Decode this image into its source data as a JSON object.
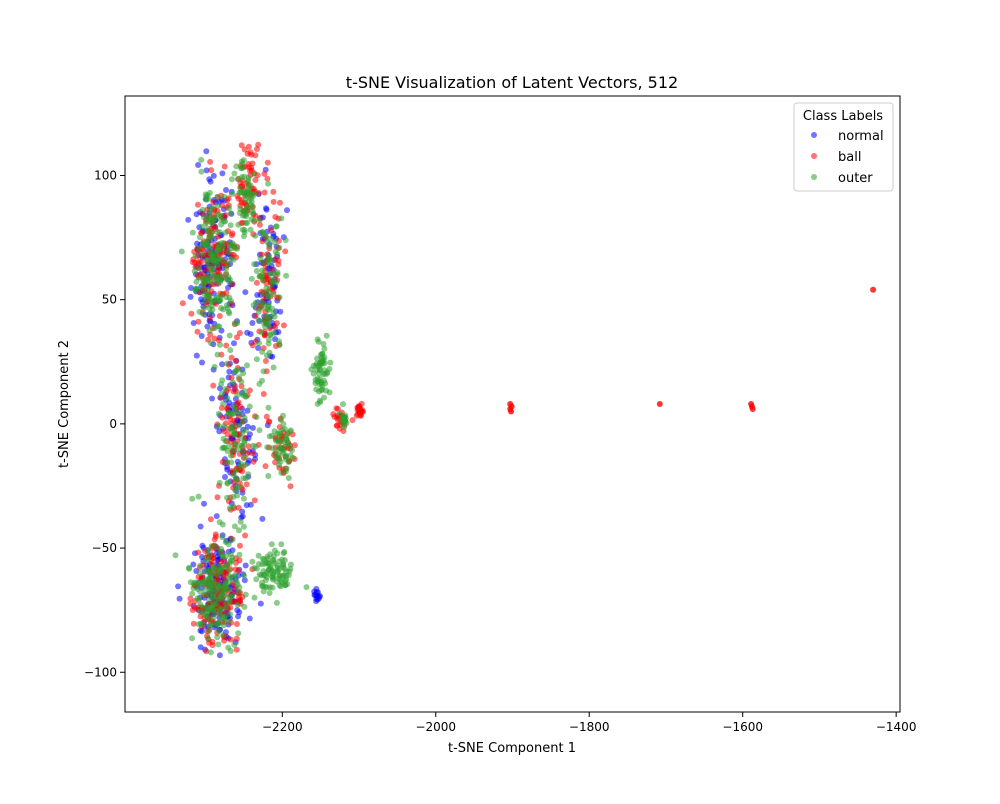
{
  "chart_data": {
    "type": "scatter",
    "title": "t-SNE Visualization of Latent Vectors, 512",
    "xlabel": "t-SNE Component 1",
    "ylabel": "t-SNE Component 2",
    "xlim": [
      -2405,
      -1395
    ],
    "ylim": [
      -116,
      132
    ],
    "xticks": [
      -2200,
      -2000,
      -1800,
      -1600,
      -1400
    ],
    "yticks": [
      -100,
      -50,
      0,
      50,
      100
    ],
    "grid": false,
    "legend": {
      "title": "Class Labels",
      "placement": "top-right"
    },
    "point_alpha": 0.55,
    "series": [
      {
        "name": "normal",
        "color": "#0000ff",
        "clusters": [
          {
            "cx": -2290,
            "cy": 65,
            "sx": 25,
            "sy": 28,
            "n": 140
          },
          {
            "cx": -2260,
            "cy": -5,
            "sx": 25,
            "sy": 35,
            "n": 90
          },
          {
            "cx": -2285,
            "cy": -68,
            "sx": 30,
            "sy": 20,
            "n": 160
          },
          {
            "cx": -2220,
            "cy": 55,
            "sx": 18,
            "sy": 35,
            "n": 70
          },
          {
            "cx": -2155,
            "cy": -69,
            "sx": 4,
            "sy": 2,
            "n": 14
          }
        ]
      },
      {
        "name": "ball",
        "color": "#ff0000",
        "clusters": [
          {
            "cx": -2290,
            "cy": 65,
            "sx": 25,
            "sy": 28,
            "n": 150
          },
          {
            "cx": -2245,
            "cy": 95,
            "sx": 15,
            "sy": 15,
            "n": 60
          },
          {
            "cx": -2260,
            "cy": -5,
            "sx": 25,
            "sy": 35,
            "n": 90
          },
          {
            "cx": -2285,
            "cy": -68,
            "sx": 30,
            "sy": 20,
            "n": 160
          },
          {
            "cx": -2220,
            "cy": 55,
            "sx": 18,
            "sy": 35,
            "n": 80
          },
          {
            "cx": -2200,
            "cy": -10,
            "sx": 15,
            "sy": 12,
            "n": 40
          },
          {
            "cx": -2100,
            "cy": 5,
            "sx": 6,
            "sy": 3,
            "n": 25
          },
          {
            "cx": -2125,
            "cy": 2,
            "sx": 6,
            "sy": 4,
            "n": 20
          }
        ],
        "outliers": [
          {
            "x": -1903,
            "y": 6
          },
          {
            "x": -1901,
            "y": 7
          },
          {
            "x": -1902,
            "y": 5
          },
          {
            "x": -1903,
            "y": 8
          },
          {
            "x": -1708,
            "y": 8
          },
          {
            "x": -1588,
            "y": 7
          },
          {
            "x": -1587,
            "y": 6
          },
          {
            "x": -1589,
            "y": 8
          },
          {
            "x": -1430,
            "y": 54
          }
        ]
      },
      {
        "name": "outer",
        "color": "#2ca02c",
        "clusters": [
          {
            "cx": -2290,
            "cy": 65,
            "sx": 25,
            "sy": 28,
            "n": 170
          },
          {
            "cx": -2250,
            "cy": 90,
            "sx": 15,
            "sy": 15,
            "n": 60
          },
          {
            "cx": -2260,
            "cy": -5,
            "sx": 25,
            "sy": 35,
            "n": 100
          },
          {
            "cx": -2285,
            "cy": -68,
            "sx": 30,
            "sy": 20,
            "n": 170
          },
          {
            "cx": -2210,
            "cy": -60,
            "sx": 25,
            "sy": 8,
            "n": 90
          },
          {
            "cx": -2220,
            "cy": 55,
            "sx": 18,
            "sy": 35,
            "n": 90
          },
          {
            "cx": -2200,
            "cy": -10,
            "sx": 15,
            "sy": 12,
            "n": 50
          },
          {
            "cx": -2150,
            "cy": 20,
            "sx": 10,
            "sy": 12,
            "n": 60
          },
          {
            "cx": -2120,
            "cy": 2,
            "sx": 6,
            "sy": 4,
            "n": 15
          }
        ]
      }
    ]
  }
}
